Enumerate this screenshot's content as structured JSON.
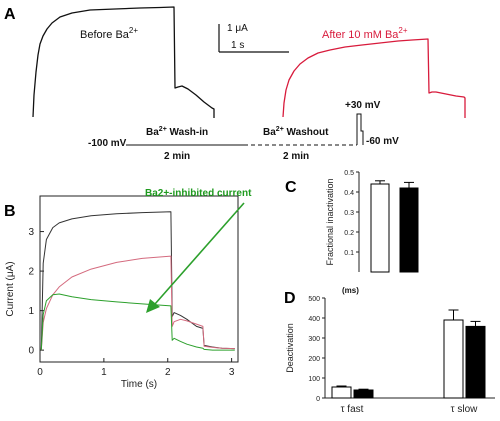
{
  "figure": {
    "panel_a": {
      "letter": "A",
      "before": {
        "text": "Before Ba",
        "sup": "2+"
      },
      "after": {
        "text": "After 10 mM Ba",
        "sup": "2+"
      },
      "scale_current": "1 μA",
      "scale_time": "1 s",
      "holding": "-100 mV",
      "wash_in": {
        "bold": "Ba",
        "sup": "2+",
        "rest": " Wash-in"
      },
      "washout": {
        "bold": "Ba",
        "sup": "2+",
        "rest": " Washout"
      },
      "wash_in_duration": "2 min",
      "washout_duration": "2 min",
      "step": "+30 mV",
      "tail": "-60 mV",
      "colors": {
        "before": "#111111",
        "after": "#d81b3c"
      }
    },
    "panel_b": {
      "letter": "B",
      "annotation": "Ba2+-inhibited current",
      "colors": {
        "control": "#333333",
        "barium": "#d46a7e",
        "inhibited": "#2ca02c",
        "annotation": "#1f9a1f"
      }
    },
    "panel_c": {
      "letter": "C"
    },
    "panel_d": {
      "letter": "D",
      "unit": "(ms)"
    }
  },
  "chart_data": [
    {
      "panel": "B",
      "type": "line",
      "xlabel": "Time (s)",
      "ylabel": "Current (μA)",
      "xlim": [
        0,
        3.1
      ],
      "ylim": [
        -0.3,
        3.9
      ],
      "x_ticks": [
        0,
        1,
        2,
        3
      ],
      "y_ticks": [
        0,
        1,
        2,
        3
      ],
      "series": [
        {
          "color": "#333333",
          "x": [
            0.02,
            0.05,
            0.1,
            0.2,
            0.3,
            0.5,
            0.8,
            1.2,
            1.6,
            2.05,
            2.07,
            2.1,
            2.2,
            2.3,
            2.45,
            2.55,
            2.57,
            2.7,
            2.85,
            3.05
          ],
          "y": [
            0,
            2.2,
            2.8,
            3.1,
            3.22,
            3.32,
            3.4,
            3.45,
            3.48,
            3.5,
            0.85,
            0.95,
            0.88,
            0.78,
            0.6,
            0.55,
            0.12,
            0.08,
            0.05,
            0.04
          ]
        },
        {
          "color": "#d46a7e",
          "x": [
            0.02,
            0.05,
            0.1,
            0.2,
            0.3,
            0.5,
            0.8,
            1.2,
            1.6,
            2.05,
            2.07,
            2.1,
            2.2,
            2.3,
            2.45,
            2.55,
            2.57,
            2.7,
            2.85,
            3.05
          ],
          "y": [
            0,
            0.7,
            1.05,
            1.4,
            1.6,
            1.85,
            2.05,
            2.22,
            2.32,
            2.38,
            0.6,
            0.72,
            0.78,
            0.74,
            0.66,
            0.6,
            0.1,
            0.07,
            0.05,
            0.04
          ]
        },
        {
          "color": "#2ca02c",
          "x": [
            0.02,
            0.05,
            0.1,
            0.2,
            0.3,
            0.5,
            0.8,
            1.2,
            1.6,
            2.05,
            2.07,
            2.1,
            2.2,
            2.3,
            2.45,
            2.55,
            2.57,
            2.7,
            2.85,
            3.05
          ],
          "y": [
            0,
            0.9,
            1.25,
            1.4,
            1.42,
            1.35,
            1.28,
            1.22,
            1.17,
            1.12,
            0.25,
            0.3,
            0.22,
            0.15,
            0.08,
            0.05,
            0.02,
            0.0,
            0.0,
            0.0
          ]
        }
      ]
    },
    {
      "panel": "C",
      "type": "bar",
      "ylabel": "Fractional inactivation",
      "ylim": [
        0,
        0.5
      ],
      "y_ticks": [
        0.1,
        0.2,
        0.3,
        0.4,
        0.5
      ],
      "series": [
        {
          "fill": "#ffffff",
          "values": [
            0.44
          ],
          "errors": [
            0.016
          ]
        },
        {
          "fill": "#000000",
          "values": [
            0.42
          ],
          "errors": [
            0.028
          ]
        }
      ]
    },
    {
      "panel": "D",
      "type": "bar",
      "ylabel": "Deactivation",
      "ylim": [
        0,
        500
      ],
      "y_ticks": [
        0,
        100,
        200,
        300,
        400,
        500
      ],
      "categories": [
        "τ fast",
        "τ slow"
      ],
      "series": [
        {
          "fill": "#ffffff",
          "values": [
            55,
            390
          ],
          "errors": [
            5,
            50
          ]
        },
        {
          "fill": "#000000",
          "values": [
            40,
            358
          ],
          "errors": [
            4,
            25
          ]
        }
      ]
    }
  ]
}
